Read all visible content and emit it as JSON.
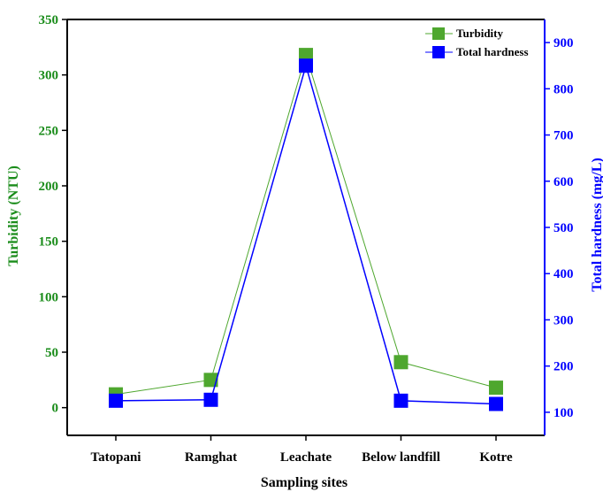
{
  "chart_data": {
    "type": "line",
    "categories": [
      "Tatopani",
      "Ramghat",
      "Leachate",
      "Below landfill",
      "Kotre"
    ],
    "xlabel": "Sampling sites",
    "ylabel_left": "Turbidity (NTU)",
    "ylabel_right": "Total hardness (mg/L)",
    "ylim_left": [
      -25,
      350
    ],
    "ylim_right": [
      50,
      950
    ],
    "yticks_left": [
      0,
      50,
      100,
      150,
      200,
      250,
      300,
      350
    ],
    "yticks_right": [
      100,
      200,
      300,
      400,
      500,
      600,
      700,
      800,
      900
    ],
    "legend_position": "top-right",
    "series": [
      {
        "name": "Turbidity",
        "axis": "left",
        "color": "#4ea72e",
        "marker": "square",
        "values": [
          12,
          25,
          318,
          41,
          18
        ]
      },
      {
        "name": "Total hardness",
        "axis": "right",
        "color": "#0000ff",
        "marker": "square",
        "values": [
          125,
          127,
          850,
          125,
          118
        ]
      }
    ]
  },
  "colors": {
    "left_axis": "#1a8c1a",
    "right_axis": "#0000ff",
    "frame": "#000000"
  }
}
